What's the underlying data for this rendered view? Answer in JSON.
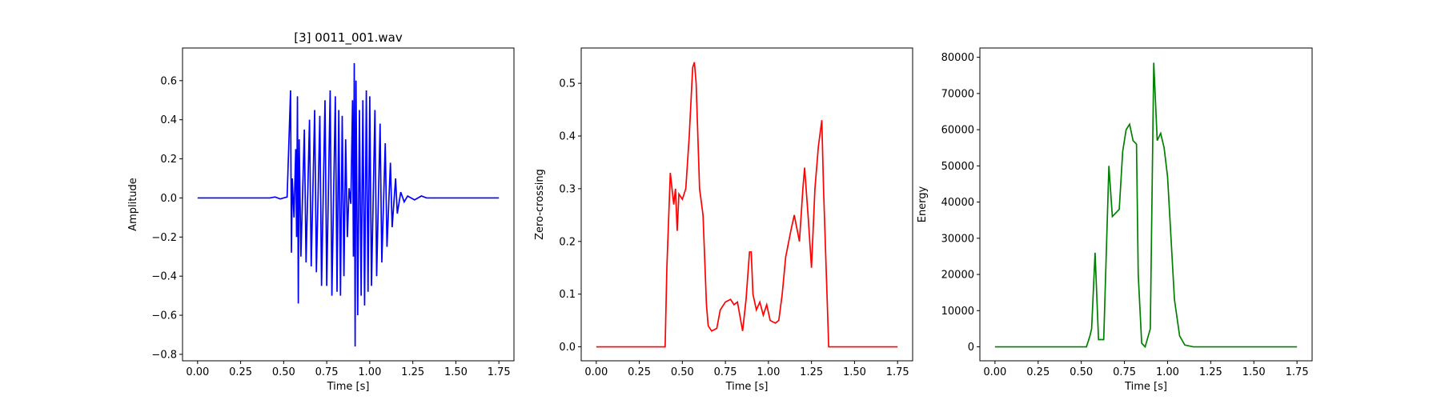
{
  "chart_data": [
    {
      "type": "line",
      "title": "[3] 0011_001.wav",
      "x_label": "Time [s]",
      "y_label": "Amplitude",
      "color": "#0000ff",
      "x": [
        0,
        0.42,
        0.45,
        0.48,
        0.52,
        0.54,
        0.545,
        0.55,
        0.56,
        0.57,
        0.575,
        0.58,
        0.585,
        0.59,
        0.6,
        0.62,
        0.63,
        0.65,
        0.66,
        0.68,
        0.69,
        0.71,
        0.72,
        0.74,
        0.75,
        0.77,
        0.78,
        0.8,
        0.81,
        0.82,
        0.83,
        0.84,
        0.85,
        0.86,
        0.87,
        0.88,
        0.89,
        0.9,
        0.905,
        0.91,
        0.915,
        0.92,
        0.93,
        0.94,
        0.95,
        0.96,
        0.97,
        0.98,
        0.99,
        1.0,
        1.01,
        1.03,
        1.04,
        1.06,
        1.07,
        1.09,
        1.1,
        1.12,
        1.13,
        1.15,
        1.16,
        1.18,
        1.2,
        1.22,
        1.26,
        1.3,
        1.33,
        1.75
      ],
      "values": [
        0,
        0,
        0.005,
        -0.005,
        0.005,
        0.55,
        -0.28,
        0.1,
        -0.1,
        0.25,
        -0.2,
        0.52,
        -0.54,
        0.3,
        -0.3,
        0.35,
        -0.33,
        0.4,
        -0.35,
        0.45,
        -0.38,
        0.42,
        -0.45,
        0.5,
        -0.45,
        0.55,
        -0.5,
        0.52,
        -0.48,
        0.45,
        -0.5,
        0.42,
        -0.4,
        0.3,
        -0.2,
        0.05,
        -0.03,
        0.5,
        -0.3,
        0.69,
        -0.76,
        0.6,
        -0.6,
        0.45,
        -0.5,
        0.5,
        -0.55,
        0.55,
        -0.48,
        0.52,
        -0.45,
        0.45,
        -0.4,
        0.38,
        -0.33,
        0.28,
        -0.25,
        0.18,
        -0.15,
        0.1,
        -0.08,
        0.03,
        -0.02,
        0.01,
        -0.01,
        0.01,
        0,
        0
      ],
      "xlim": [
        -0.0875,
        1.8375
      ],
      "xticks": [
        {
          "value": 0,
          "label": "0.00"
        },
        0.25,
        {
          "value": 0.5,
          "label": "0.50"
        },
        0.75,
        {
          "value": 1,
          "label": "1.00"
        },
        1.25,
        {
          "value": 1.5,
          "label": "1.50"
        },
        1.75
      ],
      "ylim": [
        -0.833,
        0.767
      ],
      "yticks": [
        {
          "value": -0.8,
          "label": "−0.8"
        },
        {
          "value": -0.6,
          "label": "−0.6"
        },
        {
          "value": -0.4,
          "label": "−0.4"
        },
        {
          "value": -0.2,
          "label": "−0.2"
        },
        {
          "value": 0,
          "label": "0.0"
        },
        0.2,
        0.4,
        0.6
      ]
    },
    {
      "type": "line",
      "x_label": "Time [s]",
      "y_label": "Zero-crossing",
      "color": "#ff0000",
      "x": [
        0,
        0.4,
        0.41,
        0.43,
        0.45,
        0.46,
        0.47,
        0.48,
        0.5,
        0.52,
        0.54,
        0.56,
        0.57,
        0.58,
        0.6,
        0.62,
        0.64,
        0.65,
        0.67,
        0.7,
        0.72,
        0.75,
        0.78,
        0.8,
        0.82,
        0.85,
        0.87,
        0.89,
        0.9,
        0.91,
        0.93,
        0.95,
        0.97,
        0.99,
        1.01,
        1.04,
        1.06,
        1.08,
        1.1,
        1.13,
        1.15,
        1.18,
        1.2,
        1.21,
        1.23,
        1.25,
        1.27,
        1.29,
        1.31,
        1.32,
        1.35,
        1.75
      ],
      "values": [
        0,
        0,
        0.15,
        0.33,
        0.27,
        0.3,
        0.22,
        0.29,
        0.28,
        0.3,
        0.4,
        0.53,
        0.54,
        0.5,
        0.3,
        0.25,
        0.08,
        0.04,
        0.03,
        0.035,
        0.07,
        0.085,
        0.09,
        0.08,
        0.085,
        0.03,
        0.09,
        0.18,
        0.18,
        0.1,
        0.07,
        0.085,
        0.06,
        0.08,
        0.05,
        0.045,
        0.05,
        0.1,
        0.17,
        0.22,
        0.25,
        0.2,
        0.3,
        0.34,
        0.25,
        0.15,
        0.3,
        0.38,
        0.43,
        0.3,
        0,
        0
      ],
      "xlim": [
        -0.0875,
        1.8375
      ],
      "xticks": [
        {
          "value": 0,
          "label": "0.00"
        },
        0.25,
        {
          "value": 0.5,
          "label": "0.50"
        },
        0.75,
        {
          "value": 1,
          "label": "1.00"
        },
        1.25,
        {
          "value": 1.5,
          "label": "1.50"
        },
        1.75
      ],
      "ylim": [
        -0.0265,
        0.567
      ],
      "yticks": [
        {
          "value": 0,
          "label": "0.0"
        },
        0.1,
        0.2,
        0.3,
        0.4,
        0.5
      ]
    },
    {
      "type": "line",
      "x_label": "Time [s]",
      "y_label": "Energy",
      "color": "#008000",
      "x": [
        0,
        0.53,
        0.55,
        0.56,
        0.58,
        0.6,
        0.63,
        0.66,
        0.68,
        0.7,
        0.72,
        0.74,
        0.76,
        0.78,
        0.8,
        0.82,
        0.83,
        0.85,
        0.87,
        0.9,
        0.92,
        0.94,
        0.96,
        0.98,
        1.0,
        1.02,
        1.04,
        1.07,
        1.1,
        1.15,
        1.75
      ],
      "values": [
        0,
        0,
        3000,
        5000,
        26000,
        2000,
        2000,
        50000,
        36000,
        37000,
        38000,
        54000,
        60000,
        61500,
        57000,
        56000,
        20000,
        1000,
        0,
        5000,
        78500,
        57000,
        59000,
        55000,
        47000,
        30000,
        13000,
        3000,
        500,
        0,
        0
      ],
      "xlim": [
        -0.0875,
        1.8375
      ],
      "xticks": [
        {
          "value": 0,
          "label": "0.00"
        },
        0.25,
        {
          "value": 0.5,
          "label": "0.50"
        },
        0.75,
        {
          "value": 1,
          "label": "1.00"
        },
        1.25,
        {
          "value": 1.5,
          "label": "1.50"
        },
        1.75
      ],
      "ylim": [
        -3858,
        82572
      ],
      "yticks": [
        0,
        10000,
        20000,
        30000,
        40000,
        50000,
        60000,
        70000,
        80000
      ]
    }
  ]
}
